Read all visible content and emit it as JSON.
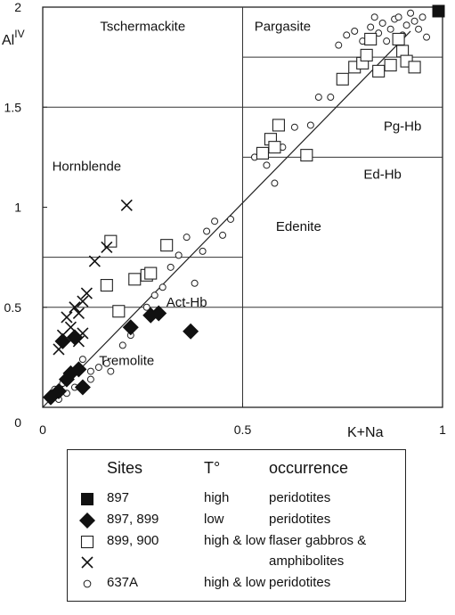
{
  "chart_data": {
    "type": "scatter",
    "xlabel": "K+Na",
    "ylabel": "Al",
    "ylabel_sup": "IV",
    "xlim": [
      0,
      1
    ],
    "ylim": [
      0,
      2
    ],
    "x_ticks": [
      {
        "value": 0,
        "label": "0"
      },
      {
        "value": 0.5,
        "label": "0.5"
      },
      {
        "value": 1,
        "label": "1"
      }
    ],
    "y_ticks": [
      {
        "value": 0,
        "label": "0"
      },
      {
        "value": 0.5,
        "label": "0.5"
      },
      {
        "value": 1,
        "label": "1"
      },
      {
        "value": 1.5,
        "label": "1.5"
      },
      {
        "value": 2,
        "label": "2"
      }
    ],
    "fields": [
      {
        "name": "Tschermackite",
        "x": 0.25,
        "y": 1.9
      },
      {
        "name": "Pargasite",
        "x": 0.6,
        "y": 1.9
      },
      {
        "name": "Pg-Hb",
        "x": 0.9,
        "y": 1.4
      },
      {
        "name": "Ed-Hb",
        "x": 0.85,
        "y": 1.16
      },
      {
        "name": "Hornblende",
        "x": 0.11,
        "y": 1.2
      },
      {
        "name": "Edenite",
        "x": 0.64,
        "y": 0.9
      },
      {
        "name": "Act-Hb",
        "x": 0.36,
        "y": 0.52
      },
      {
        "name": "Tremolite",
        "x": 0.21,
        "y": 0.23
      }
    ],
    "boundaries": [
      {
        "x1": 0.5,
        "y1": 0,
        "x2": 0.5,
        "y2": 2
      },
      {
        "x1": 0,
        "y1": 0.5,
        "x2": 1,
        "y2": 0.5
      },
      {
        "x1": 0,
        "y1": 0.75,
        "x2": 0.5,
        "y2": 0.75
      },
      {
        "x1": 0,
        "y1": 1.5,
        "x2": 1,
        "y2": 1.5
      },
      {
        "x1": 0.5,
        "y1": 1.25,
        "x2": 1,
        "y2": 1.25
      },
      {
        "x1": 0.5,
        "y1": 1.75,
        "x2": 1,
        "y2": 1.75
      }
    ],
    "trend_line": [
      [
        0,
        0
      ],
      [
        0.92,
        1.88
      ]
    ],
    "series": [
      {
        "marker": "square-filled",
        "points": [
          [
            0.99,
            1.98
          ]
        ]
      },
      {
        "marker": "diamond-filled",
        "points": [
          [
            0.02,
            0.05
          ],
          [
            0.04,
            0.08
          ],
          [
            0.06,
            0.14
          ],
          [
            0.07,
            0.17
          ],
          [
            0.09,
            0.19
          ],
          [
            0.1,
            0.1
          ],
          [
            0.05,
            0.33
          ],
          [
            0.08,
            0.35
          ],
          [
            0.22,
            0.4
          ],
          [
            0.27,
            0.46
          ],
          [
            0.29,
            0.47
          ],
          [
            0.37,
            0.38
          ]
        ]
      },
      {
        "marker": "square-open",
        "points": [
          [
            0.17,
            0.83
          ],
          [
            0.16,
            0.61
          ],
          [
            0.19,
            0.48
          ],
          [
            0.23,
            0.64
          ],
          [
            0.26,
            0.66
          ],
          [
            0.27,
            0.67
          ],
          [
            0.31,
            0.81
          ],
          [
            0.55,
            1.27
          ],
          [
            0.57,
            1.34
          ],
          [
            0.58,
            1.3
          ],
          [
            0.59,
            1.41
          ],
          [
            0.66,
            1.26
          ],
          [
            0.75,
            1.64
          ],
          [
            0.78,
            1.7
          ],
          [
            0.8,
            1.72
          ],
          [
            0.82,
            1.84
          ],
          [
            0.81,
            1.76
          ],
          [
            0.84,
            1.68
          ],
          [
            0.87,
            1.71
          ],
          [
            0.89,
            1.84
          ],
          [
            0.9,
            1.78
          ],
          [
            0.91,
            1.73
          ],
          [
            0.93,
            1.7
          ]
        ]
      },
      {
        "marker": "cross",
        "points": [
          [
            0.04,
            0.29
          ],
          [
            0.05,
            0.36
          ],
          [
            0.06,
            0.45
          ],
          [
            0.07,
            0.4
          ],
          [
            0.08,
            0.5
          ],
          [
            0.09,
            0.47
          ],
          [
            0.09,
            0.33
          ],
          [
            0.1,
            0.53
          ],
          [
            0.11,
            0.57
          ],
          [
            0.1,
            0.37
          ],
          [
            0.13,
            0.73
          ],
          [
            0.16,
            0.8
          ],
          [
            0.21,
            1.01
          ]
        ]
      },
      {
        "marker": "circle-open",
        "points": [
          [
            0.02,
            0.05
          ],
          [
            0.03,
            0.09
          ],
          [
            0.04,
            0.04
          ],
          [
            0.05,
            0.12
          ],
          [
            0.06,
            0.07
          ],
          [
            0.08,
            0.1
          ],
          [
            0.09,
            0.19
          ],
          [
            0.1,
            0.24
          ],
          [
            0.12,
            0.14
          ],
          [
            0.12,
            0.18
          ],
          [
            0.14,
            0.2
          ],
          [
            0.16,
            0.22
          ],
          [
            0.17,
            0.18
          ],
          [
            0.2,
            0.31
          ],
          [
            0.22,
            0.36
          ],
          [
            0.26,
            0.5
          ],
          [
            0.28,
            0.56
          ],
          [
            0.3,
            0.6
          ],
          [
            0.32,
            0.7
          ],
          [
            0.34,
            0.76
          ],
          [
            0.36,
            0.85
          ],
          [
            0.38,
            0.62
          ],
          [
            0.4,
            0.78
          ],
          [
            0.41,
            0.88
          ],
          [
            0.43,
            0.93
          ],
          [
            0.45,
            0.86
          ],
          [
            0.47,
            0.94
          ],
          [
            0.53,
            1.25
          ],
          [
            0.56,
            1.21
          ],
          [
            0.58,
            1.12
          ],
          [
            0.6,
            1.3
          ],
          [
            0.63,
            1.4
          ],
          [
            0.67,
            1.41
          ],
          [
            0.69,
            1.55
          ],
          [
            0.72,
            1.55
          ],
          [
            0.74,
            1.81
          ],
          [
            0.76,
            1.86
          ],
          [
            0.78,
            1.88
          ],
          [
            0.8,
            1.83
          ],
          [
            0.82,
            1.9
          ],
          [
            0.84,
            1.87
          ],
          [
            0.85,
            1.92
          ],
          [
            0.87,
            1.89
          ],
          [
            0.88,
            1.94
          ],
          [
            0.9,
            1.86
          ],
          [
            0.91,
            1.91
          ],
          [
            0.92,
            1.97
          ],
          [
            0.94,
            1.89
          ],
          [
            0.96,
            1.85
          ],
          [
            0.93,
            1.93
          ],
          [
            0.89,
            1.95
          ],
          [
            0.86,
            1.83
          ],
          [
            0.83,
            1.95
          ],
          [
            0.95,
            1.95
          ]
        ]
      }
    ]
  },
  "legend": {
    "headers": {
      "sites": "Sites",
      "temp": "T°",
      "occurrence": "occurrence"
    },
    "rows": [
      {
        "symbol": "square-filled",
        "sites": "897",
        "temp": "high",
        "occurrence": "peridotites"
      },
      {
        "symbol": "diamond-filled",
        "sites": "897, 899",
        "temp": "low",
        "occurrence": "peridotites"
      },
      {
        "symbol": "square-open",
        "sites": "899, 900",
        "temp": "high & low",
        "occurrence": "flaser gabbros &"
      },
      {
        "symbol": "cross",
        "sites": "",
        "temp": "",
        "occurrence": "amphibolites"
      },
      {
        "symbol": "circle-open",
        "sites": "637A",
        "temp": "high & low",
        "occurrence": "peridotites"
      }
    ]
  }
}
